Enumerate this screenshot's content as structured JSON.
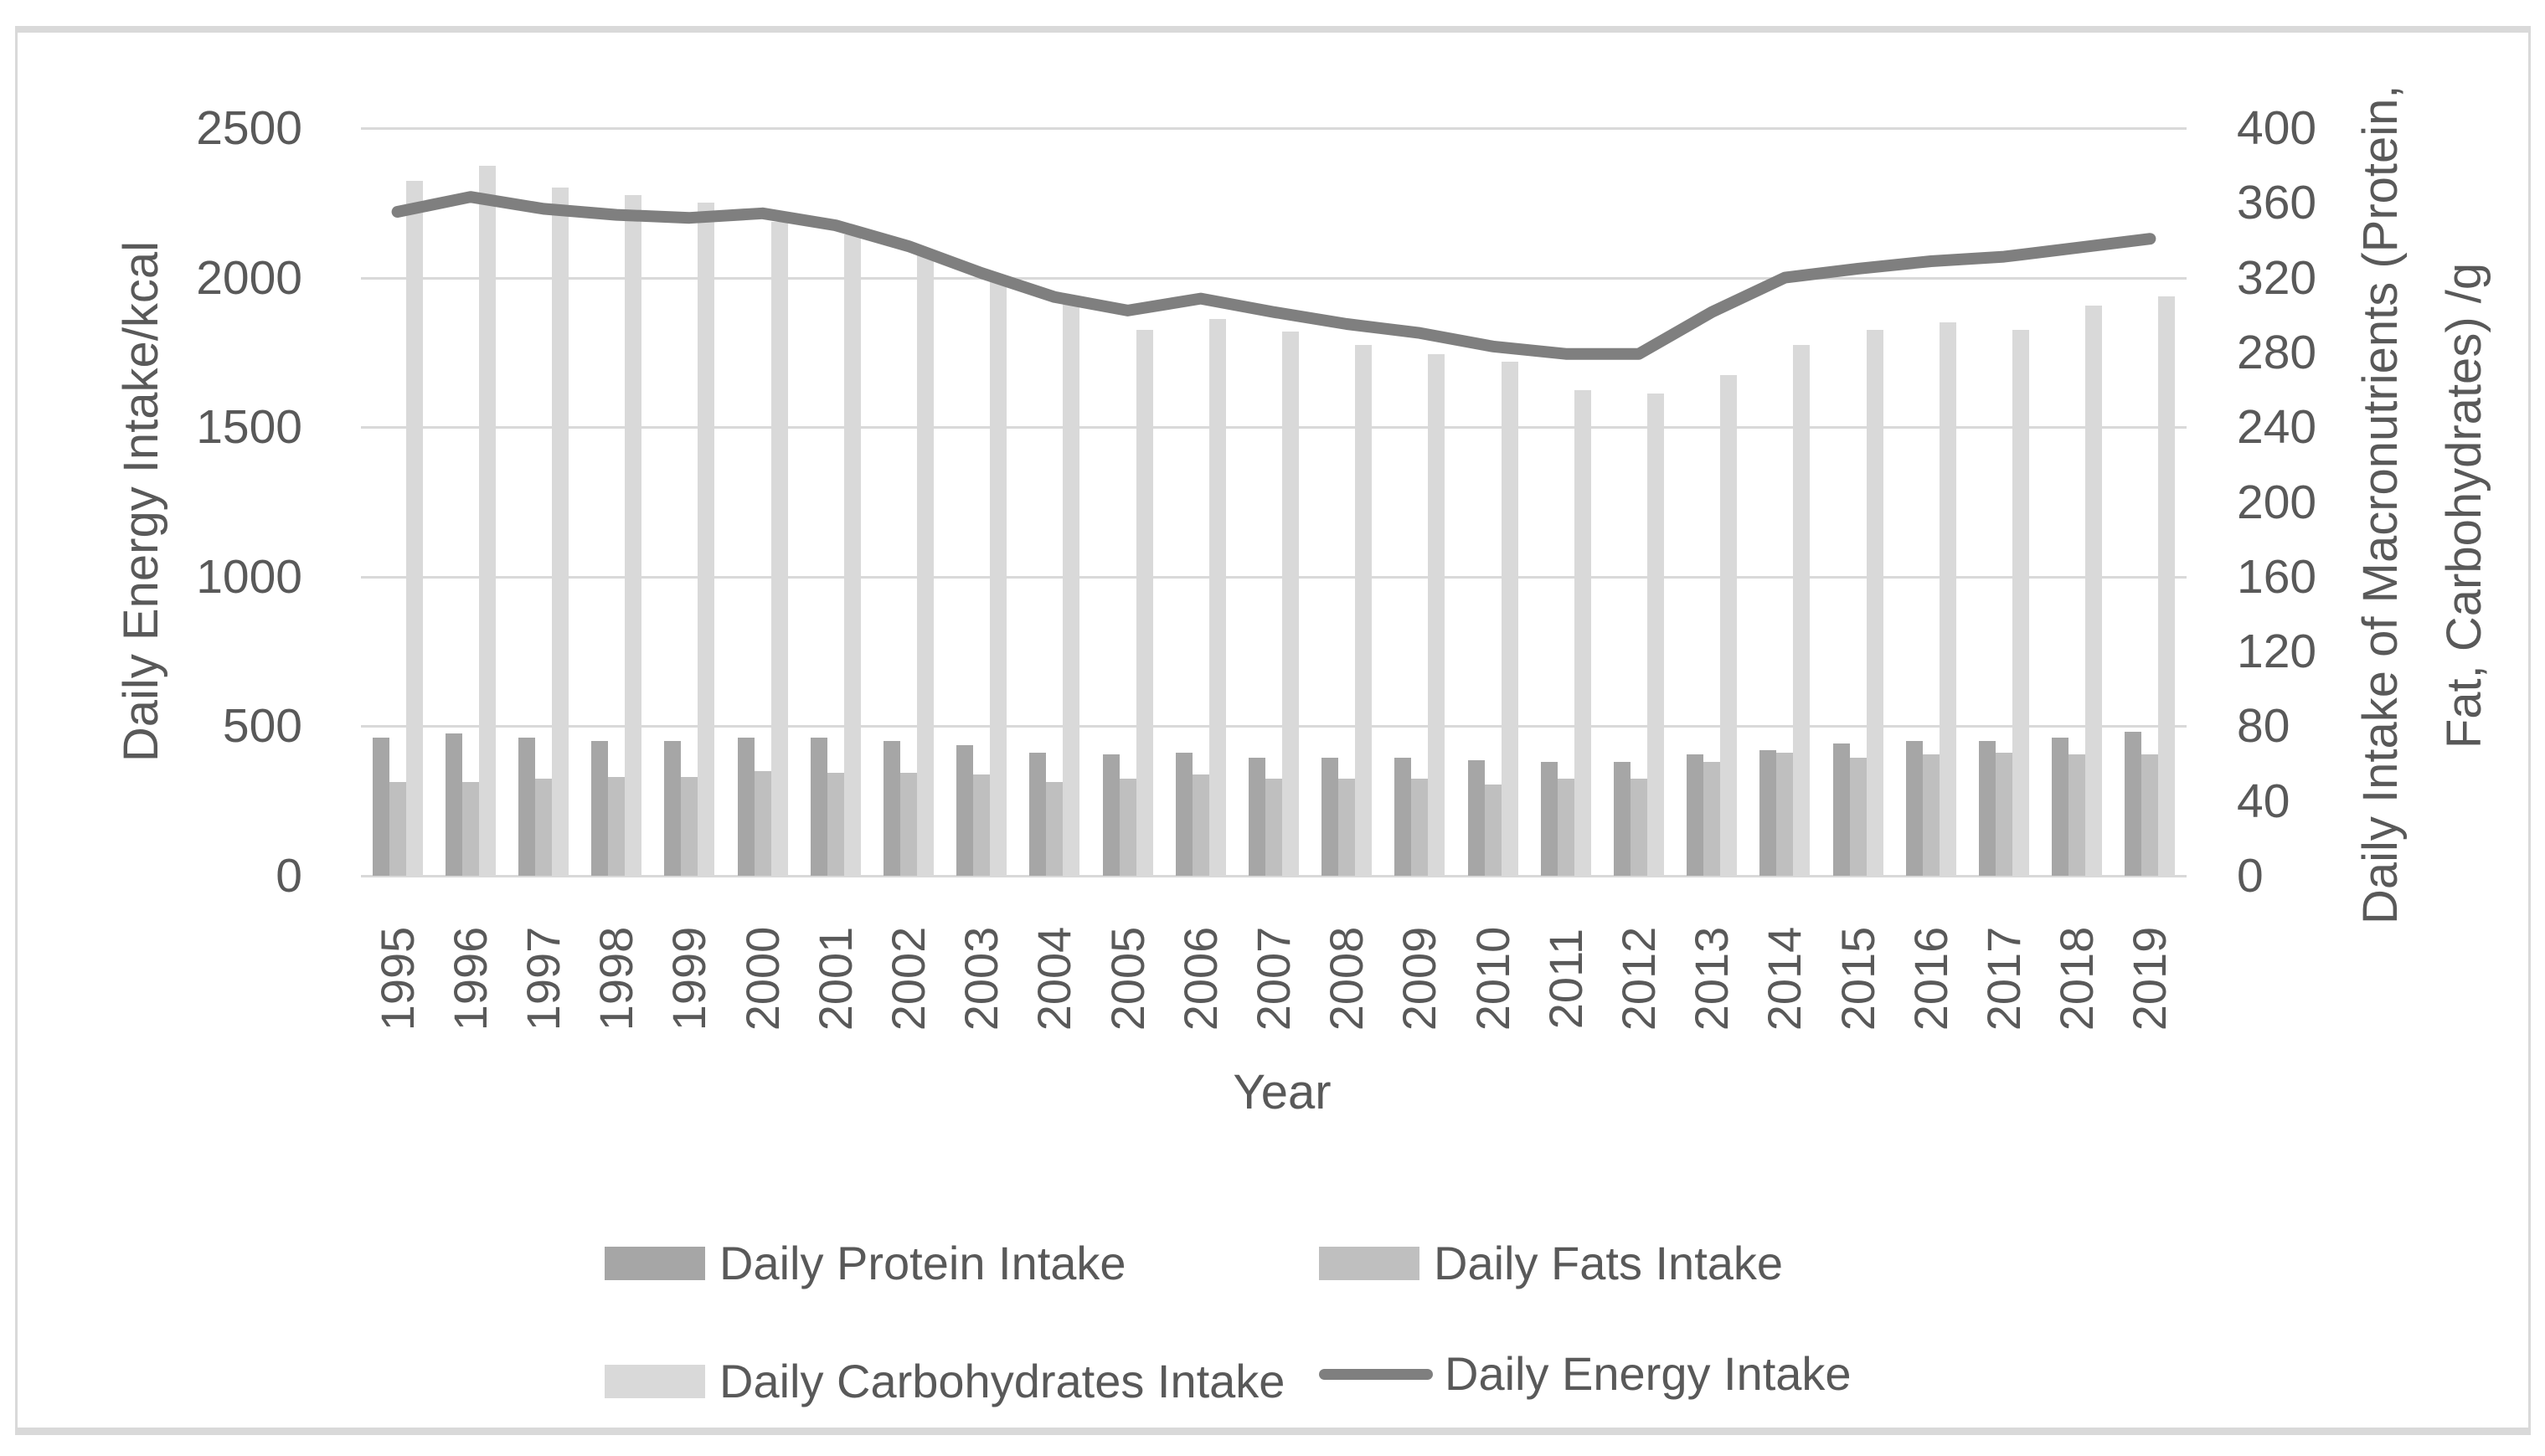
{
  "figure": {
    "background": "#ffffff",
    "border_color": "#d9d9d9",
    "gridline_color": "#d9d9d9",
    "text_color": "#595959"
  },
  "chart_data": {
    "type": "combo-bar-line",
    "title": "",
    "x_label": "Year",
    "categories": [
      1995,
      1996,
      1997,
      1998,
      1999,
      2000,
      2001,
      2002,
      2003,
      2004,
      2005,
      2006,
      2007,
      2008,
      2009,
      2010,
      2011,
      2012,
      2013,
      2014,
      2015,
      2016,
      2017,
      2018,
      2019
    ],
    "left_axis": {
      "label": "Daily Energy Intake/kcal",
      "min": 0,
      "max": 2500,
      "step": 500,
      "ticks": [
        0,
        500,
        1000,
        1500,
        2000,
        2500
      ]
    },
    "right_axis": {
      "label": "Daily Intake of Macronutrients (Protein, Fat, Carbohydrates) /g",
      "label_lines": [
        "Daily Intake of Macronutrients (Protein,",
        "Fat, Carbohydrates) /g"
      ],
      "min": 0,
      "max": 400,
      "step": 40,
      "ticks": [
        0,
        40,
        80,
        120,
        160,
        200,
        240,
        280,
        320,
        360,
        400
      ]
    },
    "grid": true,
    "legend_position": "bottom",
    "series": [
      {
        "name": "Daily Protein Intake",
        "type": "bar",
        "axis": "right",
        "color": "#a6a6a6",
        "values": [
          74,
          76,
          74,
          72,
          72,
          74,
          74,
          72,
          70,
          66,
          65,
          66,
          63,
          63,
          63,
          62,
          61,
          61,
          65,
          67,
          71,
          72,
          72,
          74,
          77
        ]
      },
      {
        "name": "Daily Fats Intake",
        "type": "bar",
        "axis": "right",
        "color": "#bfbfbf",
        "values": [
          50,
          50,
          52,
          53,
          53,
          56,
          55,
          55,
          54,
          50,
          52,
          54,
          52,
          52,
          52,
          49,
          52,
          52,
          61,
          66,
          63,
          65,
          66,
          65,
          65
        ]
      },
      {
        "name": "Daily Carbohydrates Intake",
        "type": "bar",
        "axis": "right",
        "color": "#d9d9d9",
        "values": [
          372,
          380,
          368,
          364,
          360,
          350,
          343,
          333,
          318,
          310,
          292,
          298,
          291,
          284,
          279,
          275,
          260,
          258,
          268,
          284,
          292,
          296,
          292,
          305,
          310
        ]
      },
      {
        "name": "Daily Energy Intake",
        "type": "line",
        "axis": "left",
        "color": "#7f7f7f",
        "values": [
          2220,
          2270,
          2230,
          2210,
          2200,
          2215,
          2175,
          2105,
          2015,
          1935,
          1890,
          1930,
          1885,
          1845,
          1815,
          1770,
          1745,
          1745,
          1885,
          2000,
          2030,
          2055,
          2070,
          2100,
          2130
        ]
      }
    ]
  }
}
